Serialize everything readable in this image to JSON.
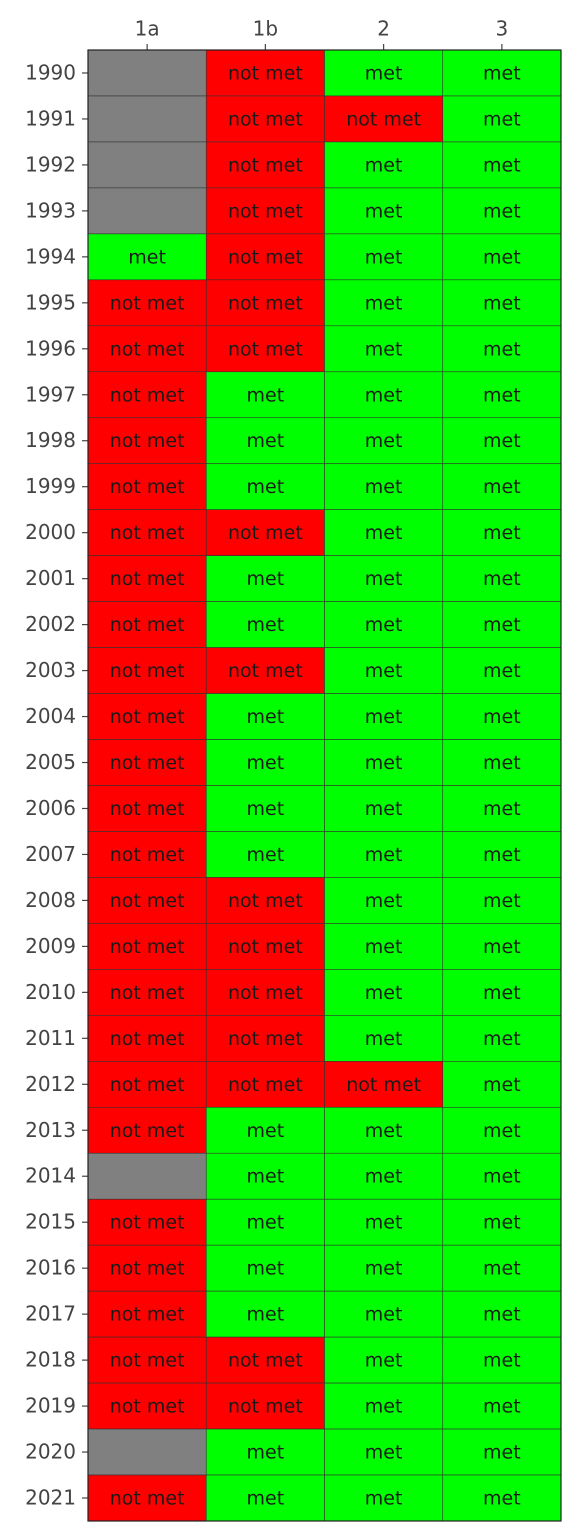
{
  "chart_data": {
    "type": "heatmap",
    "title": "",
    "xlabel": "",
    "ylabel": "",
    "columns": [
      "1a",
      "1b",
      "2",
      "3"
    ],
    "rows": [
      "1990",
      "1991",
      "1992",
      "1993",
      "1994",
      "1995",
      "1996",
      "1997",
      "1998",
      "1999",
      "2000",
      "2001",
      "2002",
      "2003",
      "2004",
      "2005",
      "2006",
      "2007",
      "2008",
      "2009",
      "2010",
      "2011",
      "2012",
      "2013",
      "2014",
      "2015",
      "2016",
      "2017",
      "2018",
      "2019",
      "2020",
      "2021"
    ],
    "values": [
      [
        "",
        "not met",
        "met",
        "met"
      ],
      [
        "",
        "not met",
        "not met",
        "met"
      ],
      [
        "",
        "not met",
        "met",
        "met"
      ],
      [
        "",
        "not met",
        "met",
        "met"
      ],
      [
        "met",
        "not met",
        "met",
        "met"
      ],
      [
        "not met",
        "not met",
        "met",
        "met"
      ],
      [
        "not met",
        "not met",
        "met",
        "met"
      ],
      [
        "not met",
        "met",
        "met",
        "met"
      ],
      [
        "not met",
        "met",
        "met",
        "met"
      ],
      [
        "not met",
        "met",
        "met",
        "met"
      ],
      [
        "not met",
        "not met",
        "met",
        "met"
      ],
      [
        "not met",
        "met",
        "met",
        "met"
      ],
      [
        "not met",
        "met",
        "met",
        "met"
      ],
      [
        "not met",
        "not met",
        "met",
        "met"
      ],
      [
        "not met",
        "met",
        "met",
        "met"
      ],
      [
        "not met",
        "met",
        "met",
        "met"
      ],
      [
        "not met",
        "met",
        "met",
        "met"
      ],
      [
        "not met",
        "met",
        "met",
        "met"
      ],
      [
        "not met",
        "not met",
        "met",
        "met"
      ],
      [
        "not met",
        "not met",
        "met",
        "met"
      ],
      [
        "not met",
        "not met",
        "met",
        "met"
      ],
      [
        "not met",
        "not met",
        "met",
        "met"
      ],
      [
        "not met",
        "not met",
        "not met",
        "met"
      ],
      [
        "not met",
        "met",
        "met",
        "met"
      ],
      [
        "",
        "met",
        "met",
        "met"
      ],
      [
        "not met",
        "met",
        "met",
        "met"
      ],
      [
        "not met",
        "met",
        "met",
        "met"
      ],
      [
        "not met",
        "met",
        "met",
        "met"
      ],
      [
        "not met",
        "not met",
        "met",
        "met"
      ],
      [
        "not met",
        "not met",
        "met",
        "met"
      ],
      [
        "",
        "met",
        "met",
        "met"
      ],
      [
        "not met",
        "met",
        "met",
        "met"
      ]
    ],
    "colors": {
      "met": "#00ff00",
      "not met": "#ff0000",
      "missing": "#808080"
    },
    "legend": "none",
    "grid": false
  }
}
